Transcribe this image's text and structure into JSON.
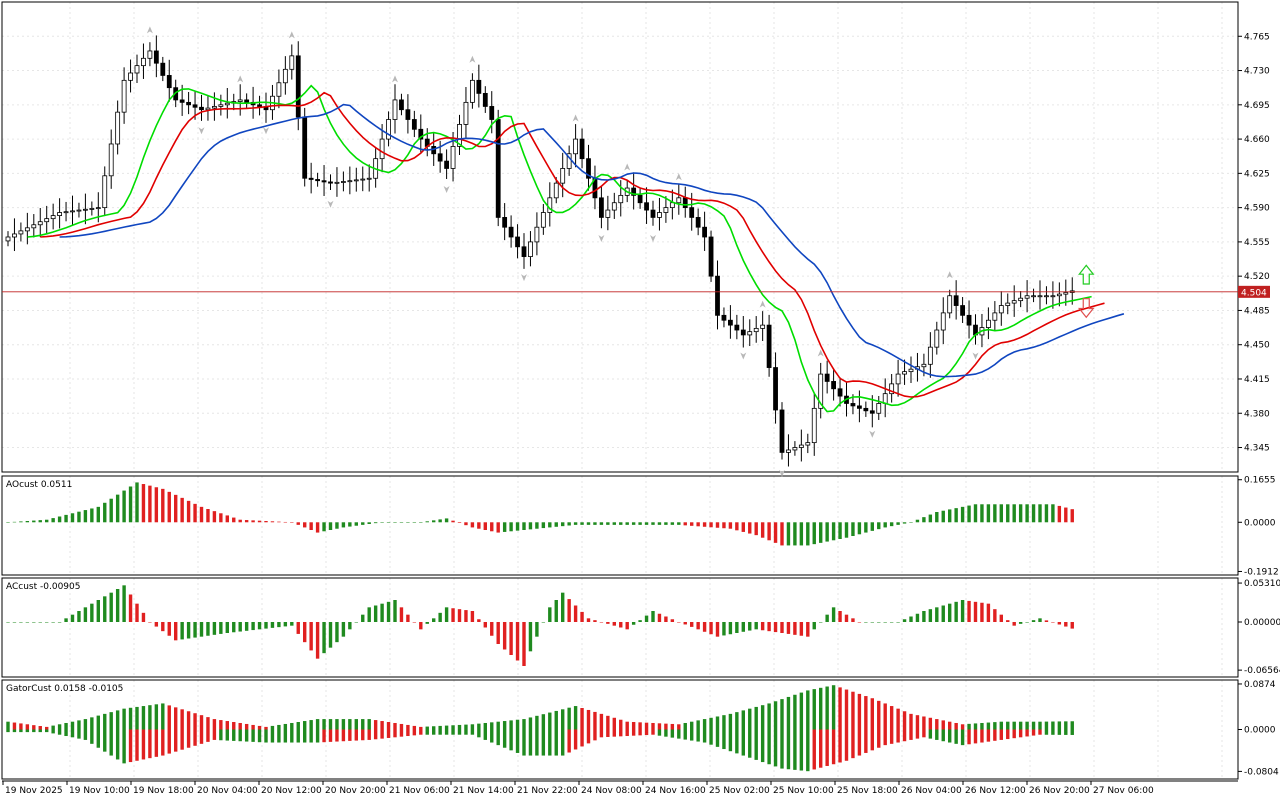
{
  "current_price": "4.504",
  "colors": {
    "up": "#1f8a1f",
    "down": "#e02020",
    "candle_up": "#ffffff",
    "candle_down": "#000000",
    "lips": "#00dd00",
    "teeth": "#e00000",
    "jaw": "#1046c0",
    "price_line": "#c02020",
    "price_box": "#c02020",
    "grid": "#e6e6e6"
  },
  "panels": {
    "main": {
      "ymin": 4.32,
      "ymax": 4.8,
      "ticks": [
        "4.765",
        "4.730",
        "4.695",
        "4.660",
        "4.625",
        "4.590",
        "4.555",
        "4.520",
        "4.485",
        "4.450",
        "4.415",
        "4.380",
        "4.345"
      ]
    },
    "ao": {
      "title": "AOcust 0.0511",
      "ymin": -0.205,
      "ymax": 0.18,
      "ticks": [
        "0.1655",
        "0.0000",
        "-0.1912"
      ]
    },
    "ac": {
      "title": "ACcust -0.00905",
      "ymin": -0.075,
      "ymax": 0.06,
      "ticks": [
        "0.05310",
        "0.00000",
        "-0.06564"
      ]
    },
    "gator": {
      "title": "GatorCust 0.0158 -0.0105",
      "ymin": -0.095,
      "ymax": 0.095,
      "ticks": [
        "0.0874",
        "0.0000",
        "-0.0804"
      ]
    }
  },
  "x_labels": [
    "19 Nov 2025",
    "19 Nov 10:00",
    "19 Nov 18:00",
    "20 Nov 04:00",
    "20 Nov 12:00",
    "20 Nov 20:00",
    "21 Nov 06:00",
    "21 Nov 14:00",
    "21 Nov 22:00",
    "24 Nov 08:00",
    "24 Nov 16:00",
    "25 Nov 02:00",
    "25 Nov 10:00",
    "25 Nov 18:00",
    "26 Nov 04:00",
    "26 Nov 12:00",
    "26 Nov 20:00",
    "27 Nov 06:00"
  ],
  "chart_data": [
    {
      "type": "candlestick",
      "title": "",
      "overlays": [
        "Alligator lips (green)",
        "Alligator teeth (red)",
        "Alligator jaw (blue)"
      ],
      "ylim": [
        4.32,
        4.8
      ],
      "current_price": 4.504,
      "close_anchors": [
        [
          0,
          4.56
        ],
        [
          8,
          4.585
        ],
        [
          14,
          4.59
        ],
        [
          18,
          4.72
        ],
        [
          22,
          4.75
        ],
        [
          26,
          4.7
        ],
        [
          30,
          4.69
        ],
        [
          36,
          4.7
        ],
        [
          40,
          4.69
        ],
        [
          44,
          4.745
        ],
        [
          46,
          4.62
        ],
        [
          50,
          4.615
        ],
        [
          56,
          4.62
        ],
        [
          60,
          4.7
        ],
        [
          64,
          4.66
        ],
        [
          68,
          4.63
        ],
        [
          72,
          4.72
        ],
        [
          75,
          4.68
        ],
        [
          76,
          4.58
        ],
        [
          80,
          4.54
        ],
        [
          84,
          4.6
        ],
        [
          88,
          4.66
        ],
        [
          92,
          4.58
        ],
        [
          96,
          4.61
        ],
        [
          100,
          4.58
        ],
        [
          104,
          4.6
        ],
        [
          108,
          4.56
        ],
        [
          110,
          4.48
        ],
        [
          114,
          4.46
        ],
        [
          117,
          4.47
        ],
        [
          120,
          4.34
        ],
        [
          124,
          4.35
        ],
        [
          126,
          4.42
        ],
        [
          130,
          4.39
        ],
        [
          134,
          4.38
        ],
        [
          138,
          4.42
        ],
        [
          142,
          4.43
        ],
        [
          146,
          4.5
        ],
        [
          150,
          4.46
        ],
        [
          154,
          4.49
        ],
        [
          158,
          4.5
        ],
        [
          162,
          4.5
        ],
        [
          165,
          4.505
        ]
      ]
    },
    {
      "type": "bar",
      "title": "AOcust 0.0511",
      "anchors": [
        [
          0,
          0.0
        ],
        [
          6,
          0.01
        ],
        [
          14,
          0.06
        ],
        [
          20,
          0.155
        ],
        [
          24,
          0.13
        ],
        [
          30,
          0.06
        ],
        [
          36,
          0.01
        ],
        [
          44,
          0.0
        ],
        [
          48,
          -0.04
        ],
        [
          52,
          -0.02
        ],
        [
          58,
          0.0
        ],
        [
          64,
          0.0
        ],
        [
          68,
          0.015
        ],
        [
          72,
          -0.02
        ],
        [
          76,
          -0.04
        ],
        [
          80,
          -0.03
        ],
        [
          88,
          -0.01
        ],
        [
          96,
          -0.01
        ],
        [
          104,
          -0.01
        ],
        [
          112,
          -0.025
        ],
        [
          116,
          -0.05
        ],
        [
          120,
          -0.09
        ],
        [
          124,
          -0.09
        ],
        [
          130,
          -0.06
        ],
        [
          136,
          -0.02
        ],
        [
          140,
          0.0
        ],
        [
          144,
          0.04
        ],
        [
          150,
          0.07
        ],
        [
          156,
          0.07
        ],
        [
          162,
          0.07
        ],
        [
          165,
          0.051
        ]
      ]
    },
    {
      "type": "bar",
      "title": "ACcust -0.00905",
      "anchors": [
        [
          0,
          0.0
        ],
        [
          8,
          0.0
        ],
        [
          14,
          0.03
        ],
        [
          18,
          0.05
        ],
        [
          22,
          0.0
        ],
        [
          26,
          -0.025
        ],
        [
          34,
          -0.015
        ],
        [
          44,
          -0.005
        ],
        [
          48,
          -0.05
        ],
        [
          52,
          -0.02
        ],
        [
          56,
          0.02
        ],
        [
          60,
          0.03
        ],
        [
          64,
          -0.01
        ],
        [
          68,
          0.02
        ],
        [
          72,
          0.015
        ],
        [
          76,
          -0.03
        ],
        [
          80,
          -0.06
        ],
        [
          84,
          0.02
        ],
        [
          86,
          0.04
        ],
        [
          90,
          0.005
        ],
        [
          96,
          -0.01
        ],
        [
          100,
          0.015
        ],
        [
          104,
          0.0
        ],
        [
          110,
          -0.02
        ],
        [
          116,
          -0.01
        ],
        [
          120,
          -0.015
        ],
        [
          124,
          -0.02
        ],
        [
          128,
          0.02
        ],
        [
          132,
          0.0
        ],
        [
          138,
          0.0
        ],
        [
          142,
          0.015
        ],
        [
          148,
          0.03
        ],
        [
          152,
          0.025
        ],
        [
          156,
          -0.005
        ],
        [
          160,
          0.005
        ],
        [
          165,
          -0.009
        ]
      ]
    },
    {
      "type": "bar",
      "title": "GatorCust 0.0158 -0.0105",
      "upper_anchors": [
        [
          0,
          0.015
        ],
        [
          6,
          0.005
        ],
        [
          12,
          0.02
        ],
        [
          18,
          0.04
        ],
        [
          24,
          0.05
        ],
        [
          32,
          0.02
        ],
        [
          40,
          0.005
        ],
        [
          48,
          0.02
        ],
        [
          56,
          0.02
        ],
        [
          64,
          0.005
        ],
        [
          72,
          0.01
        ],
        [
          80,
          0.02
        ],
        [
          88,
          0.045
        ],
        [
          96,
          0.015
        ],
        [
          104,
          0.01
        ],
        [
          112,
          0.03
        ],
        [
          118,
          0.05
        ],
        [
          124,
          0.075
        ],
        [
          128,
          0.085
        ],
        [
          134,
          0.06
        ],
        [
          140,
          0.03
        ],
        [
          148,
          0.01
        ],
        [
          154,
          0.015
        ],
        [
          160,
          0.015
        ],
        [
          165,
          0.0158
        ]
      ],
      "lower_anchors": [
        [
          0,
          -0.005
        ],
        [
          6,
          -0.005
        ],
        [
          12,
          -0.02
        ],
        [
          18,
          -0.065
        ],
        [
          24,
          -0.05
        ],
        [
          32,
          -0.02
        ],
        [
          40,
          -0.025
        ],
        [
          48,
          -0.025
        ],
        [
          56,
          -0.02
        ],
        [
          64,
          -0.01
        ],
        [
          72,
          -0.01
        ],
        [
          80,
          -0.05
        ],
        [
          86,
          -0.05
        ],
        [
          92,
          -0.015
        ],
        [
          100,
          -0.01
        ],
        [
          108,
          -0.025
        ],
        [
          114,
          -0.05
        ],
        [
          120,
          -0.075
        ],
        [
          124,
          -0.08
        ],
        [
          130,
          -0.06
        ],
        [
          136,
          -0.03
        ],
        [
          142,
          -0.015
        ],
        [
          148,
          -0.03
        ],
        [
          154,
          -0.02
        ],
        [
          160,
          -0.01
        ],
        [
          165,
          -0.0105
        ]
      ]
    }
  ]
}
